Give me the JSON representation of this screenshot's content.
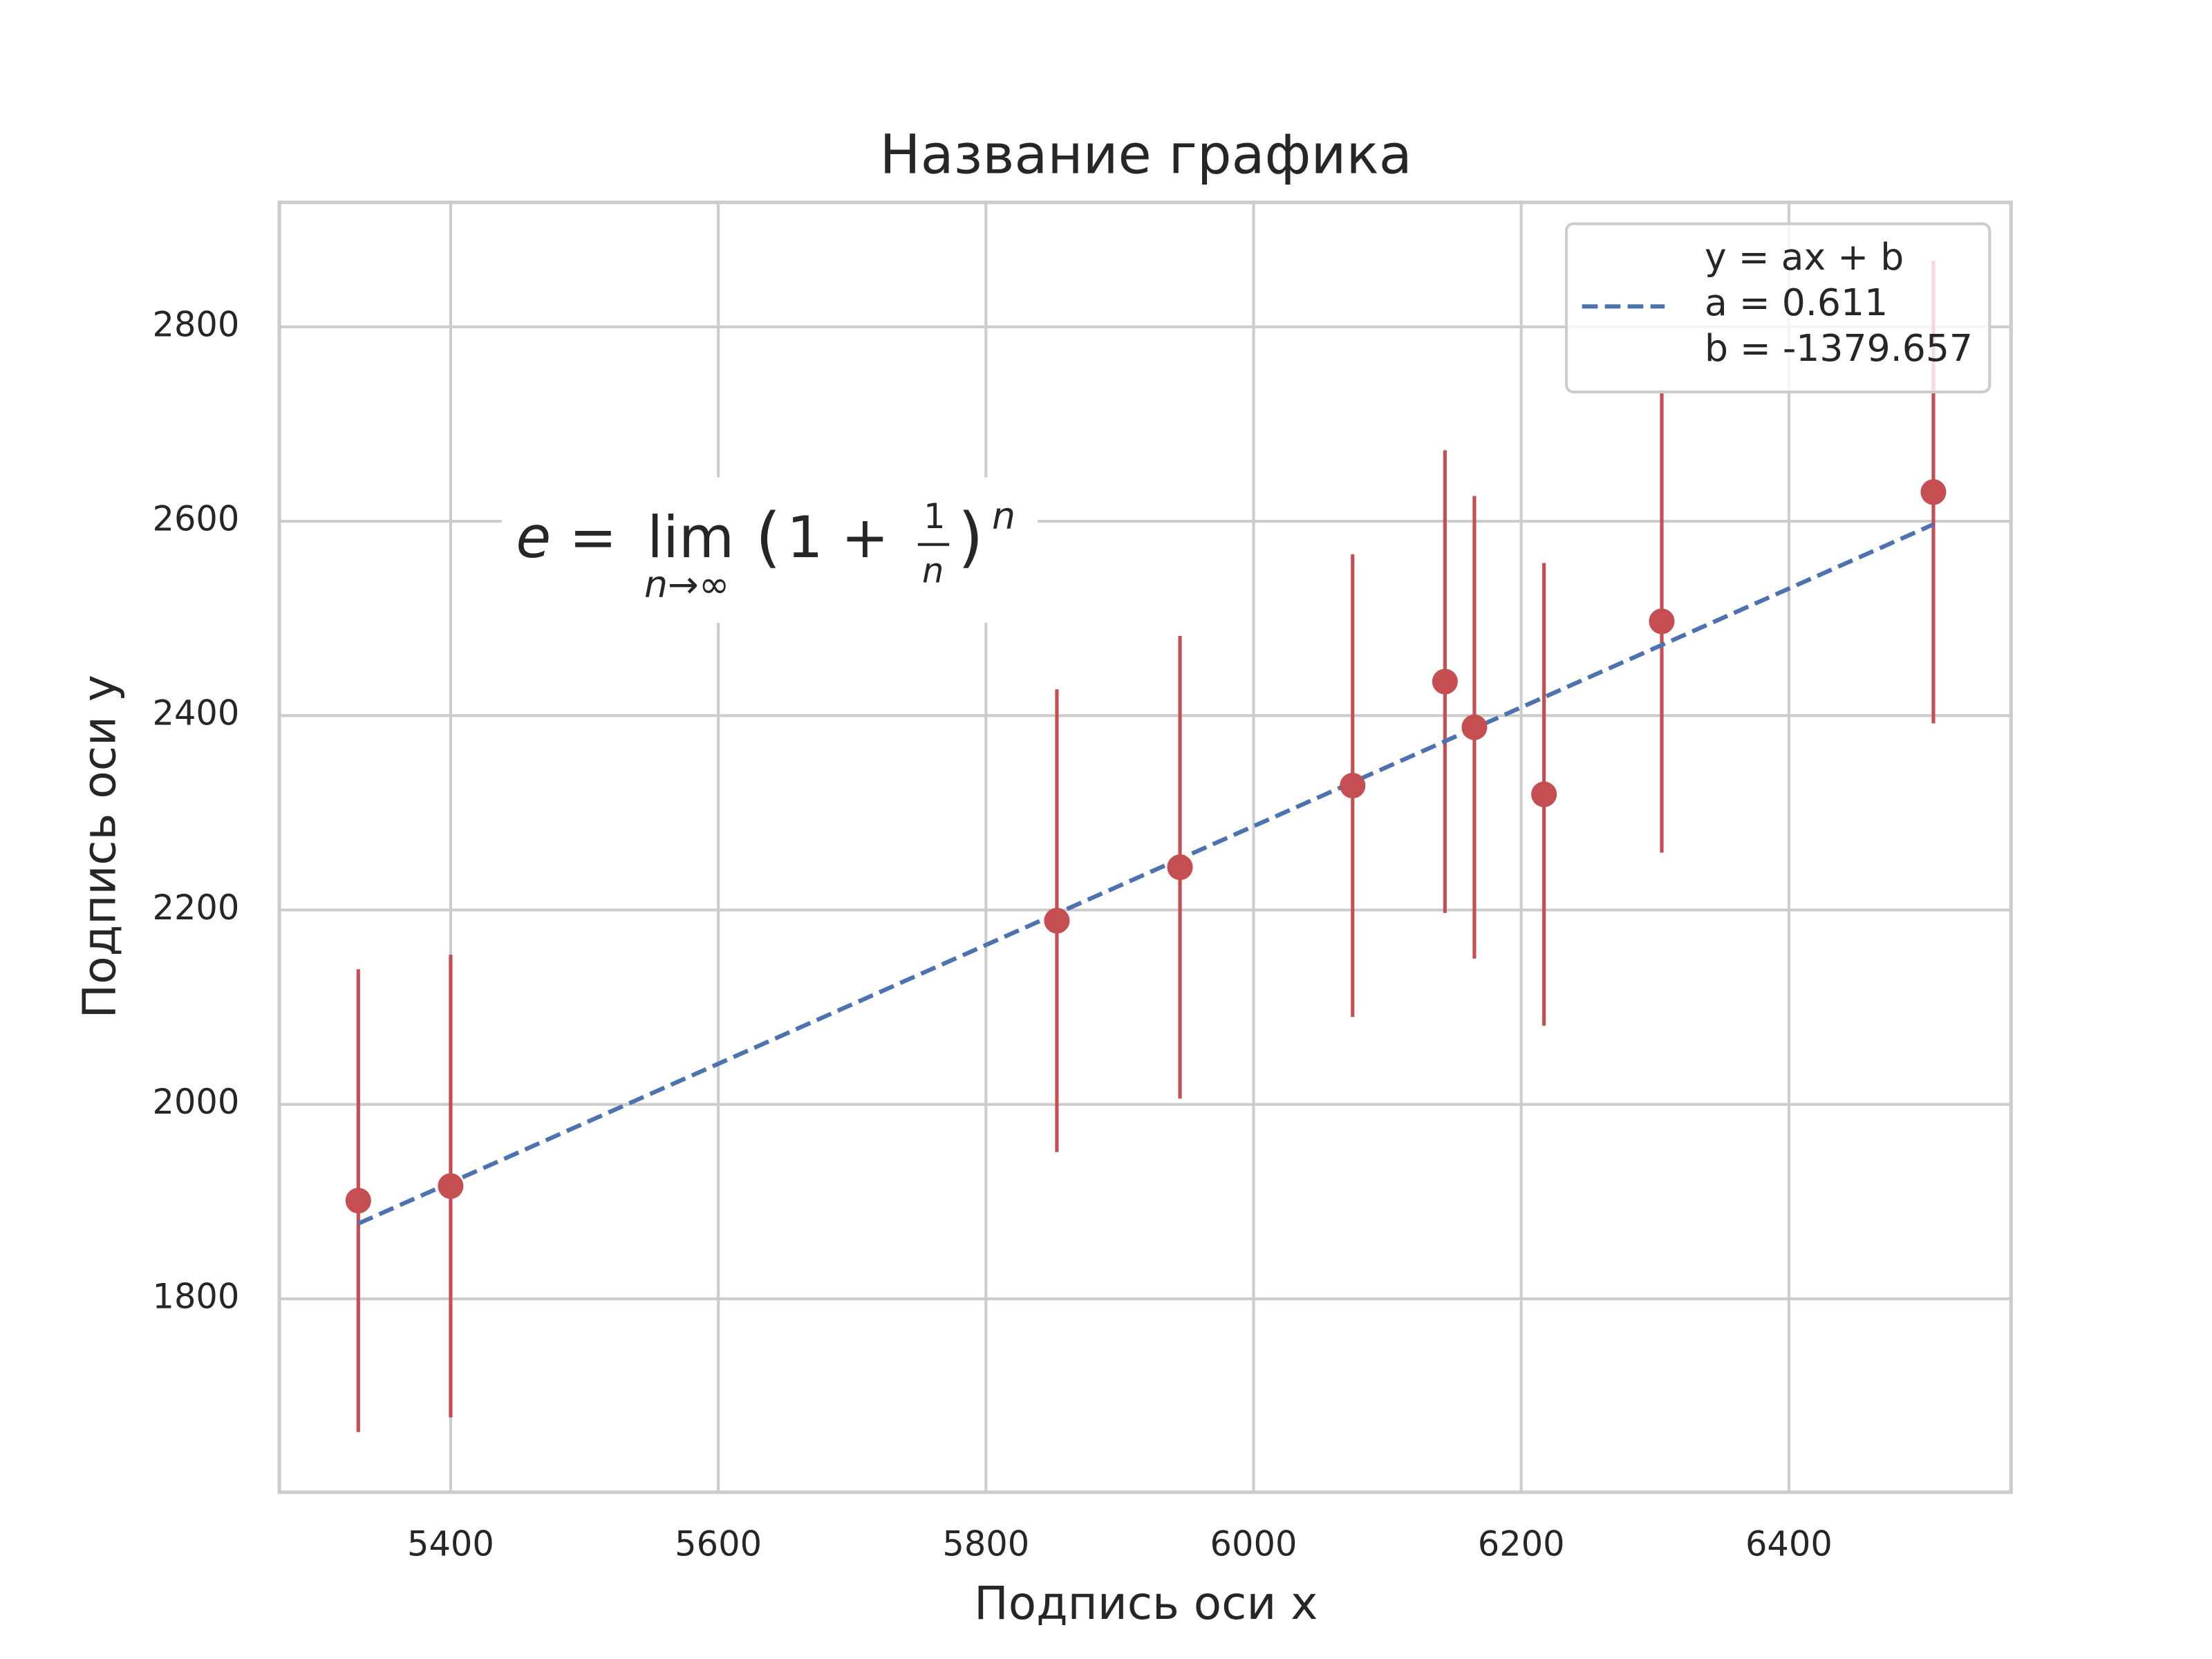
{
  "chart_data": {
    "type": "errorbar-scatter",
    "title": "Название графика",
    "x_label": "Подпись оси x",
    "y_label": "Подпись оси y",
    "xlim": [
      5272,
      6566
    ],
    "ylim": [
      1601,
      2928
    ],
    "xticks": [
      5400,
      5600,
      5800,
      6000,
      6200,
      6400
    ],
    "yticks": [
      1800,
      2000,
      2200,
      2400,
      2600,
      2800
    ],
    "grid": true,
    "legend_position": "upper right",
    "series": [
      {
        "color": "#c44e52",
        "x": [
          5331,
          5400,
          5853,
          5945,
          6074,
          6143,
          6165,
          6217,
          6305,
          6508
        ],
        "values": [
          1901,
          1916,
          2189,
          2244,
          2328,
          2435,
          2388,
          2319,
          2497,
          2630
        ],
        "errors": [
          238,
          238,
          238,
          238,
          238,
          238,
          238,
          238,
          238,
          238
        ]
      },
      {
        "color": "#4c72b0",
        "style": "dashed",
        "label_lines": [
          "y = ax + b",
          "a = 0.611",
          "b = -1379.657"
        ],
        "x": [
          5331,
          6508
        ],
        "values": [
          1877.4,
          2596.7
        ]
      }
    ],
    "annotation": {
      "lhs": "e =",
      "lim": "lim",
      "sub": "n→∞",
      "open": "(",
      "body": "1 +",
      "num": "1",
      "den": "n",
      "close": ")",
      "exp": "n"
    }
  }
}
